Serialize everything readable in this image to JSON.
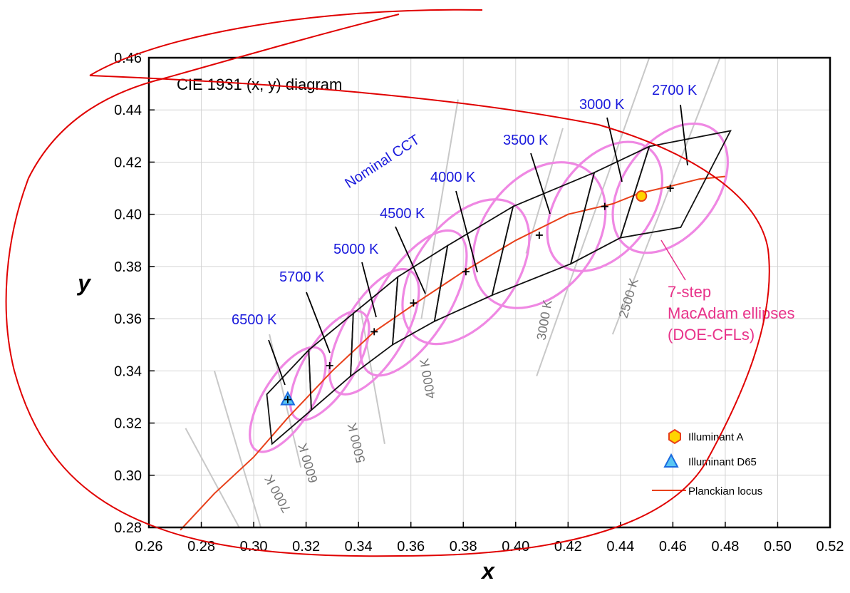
{
  "chart_data": {
    "type": "scatter",
    "title": "CIE 1931 (x, y) diagram",
    "xlabel": "x",
    "ylabel": "y",
    "xlim": [
      0.26,
      0.52
    ],
    "ylim": [
      0.28,
      0.46
    ],
    "xticks": [
      "0.26",
      "0.28",
      "0.30",
      "0.32",
      "0.34",
      "0.36",
      "0.38",
      "0.40",
      "0.42",
      "0.44",
      "0.46",
      "0.48",
      "0.50",
      "0.52"
    ],
    "yticks": [
      "0.28",
      "0.30",
      "0.32",
      "0.34",
      "0.36",
      "0.38",
      "0.40",
      "0.42",
      "0.44",
      "0.46"
    ],
    "grid": true,
    "planckian_locus": [
      [
        0.272,
        0.279
      ],
      [
        0.285,
        0.293
      ],
      [
        0.3,
        0.307
      ],
      [
        0.313,
        0.322
      ],
      [
        0.33,
        0.34
      ],
      [
        0.346,
        0.355
      ],
      [
        0.362,
        0.366
      ],
      [
        0.38,
        0.378
      ],
      [
        0.4,
        0.39
      ],
      [
        0.42,
        0.4
      ],
      [
        0.437,
        0.404
      ],
      [
        0.447,
        0.408
      ],
      [
        0.46,
        0.411
      ],
      [
        0.47,
        0.4135
      ],
      [
        0.48,
        0.4145
      ]
    ],
    "cct_regions": [
      {
        "label": "6500 K",
        "center": [
          0.313,
          0.329
        ],
        "quad": [
          [
            0.305,
            0.331
          ],
          [
            0.321,
            0.348
          ],
          [
            0.322,
            0.325
          ],
          [
            0.307,
            0.312
          ]
        ],
        "ellipse": {
          "cx": 0.313,
          "cy": 0.329,
          "rx": 0.0228,
          "ry": 0.0045,
          "angle": 58
        }
      },
      {
        "label": "5700 K",
        "center": [
          0.329,
          0.342
        ],
        "quad": [
          [
            0.321,
            0.348
          ],
          [
            0.338,
            0.362
          ],
          [
            0.337,
            0.338
          ],
          [
            0.322,
            0.325
          ]
        ],
        "ellipse": {
          "cx": 0.329,
          "cy": 0.342,
          "rx": 0.0238,
          "ry": 0.0046,
          "angle": 58
        }
      },
      {
        "label": "5000 K",
        "center": [
          0.346,
          0.355
        ],
        "quad": [
          [
            0.338,
            0.362
          ],
          [
            0.355,
            0.376
          ],
          [
            0.353,
            0.35
          ],
          [
            0.337,
            0.338
          ]
        ],
        "ellipse": {
          "cx": 0.346,
          "cy": 0.355,
          "rx": 0.027,
          "ry": 0.0055,
          "angle": 59
        }
      },
      {
        "label": "4500 K",
        "center": [
          0.361,
          0.366
        ],
        "quad": [
          [
            0.355,
            0.376
          ],
          [
            0.374,
            0.388
          ],
          [
            0.369,
            0.359
          ],
          [
            0.353,
            0.35
          ]
        ],
        "ellipse": {
          "cx": 0.361,
          "cy": 0.366,
          "rx": 0.0315,
          "ry": 0.0065,
          "angle": 58
        }
      },
      {
        "label": "4000 K",
        "center": [
          0.381,
          0.378
        ],
        "quad": [
          [
            0.374,
            0.388
          ],
          [
            0.399,
            0.403
          ],
          [
            0.391,
            0.369
          ],
          [
            0.369,
            0.359
          ]
        ],
        "ellipse": {
          "cx": 0.381,
          "cy": 0.378,
          "rx": 0.0315,
          "ry": 0.009,
          "angle": 53
        }
      },
      {
        "label": "3500 K",
        "center": [
          0.409,
          0.392
        ],
        "quad": [
          [
            0.399,
            0.403
          ],
          [
            0.43,
            0.416
          ],
          [
            0.421,
            0.381
          ],
          [
            0.391,
            0.369
          ]
        ],
        "ellipse": {
          "cx": 0.409,
          "cy": 0.392,
          "rx": 0.0308,
          "ry": 0.0103,
          "angle": 53
        }
      },
      {
        "label": "3000 K",
        "center": [
          0.434,
          0.403
        ],
        "quad": [
          [
            0.43,
            0.416
          ],
          [
            0.451,
            0.426
          ],
          [
            0.44,
            0.391
          ],
          [
            0.421,
            0.381
          ]
        ],
        "ellipse": {
          "cx": 0.434,
          "cy": 0.403,
          "rx": 0.0278,
          "ry": 0.0085,
          "angle": 53
        }
      },
      {
        "label": "2700 K",
        "center": [
          0.459,
          0.41
        ],
        "quad": [
          [
            0.451,
            0.426
          ],
          [
            0.482,
            0.432
          ],
          [
            0.463,
            0.395
          ],
          [
            0.44,
            0.391
          ]
        ],
        "ellipse": {
          "cx": 0.459,
          "cy": 0.41,
          "rx": 0.0278,
          "ry": 0.0085,
          "angle": 53
        }
      }
    ],
    "isotherms": [
      {
        "label": "7000 K",
        "p1": [
          0.274,
          0.318
        ],
        "p2": [
          0.295,
          0.279
        ]
      },
      {
        "label": "6000 K",
        "p1": [
          0.285,
          0.34
        ],
        "p2": [
          0.303,
          0.279
        ]
      },
      {
        "label": "5000 K",
        "p1": [
          0.306,
          0.354
        ],
        "p2": [
          0.318,
          0.303
        ]
      },
      {
        "label": "4000 K",
        "p1": [
          0.34,
          0.368
        ],
        "p2": [
          0.35,
          0.312
        ]
      },
      {
        "label": "3000 K",
        "p1": [
          0.378,
          0.444
        ],
        "p2": [
          0.364,
          0.36
        ]
      },
      {
        "label": "2500 K",
        "p1": [
          0.418,
          0.433
        ],
        "p2": [
          0.404,
          0.385
        ]
      },
      {
        "label": "",
        "p1": [
          0.451,
          0.46
        ],
        "p2": [
          0.408,
          0.338
        ]
      },
      {
        "label": "",
        "p1": [
          0.478,
          0.46
        ],
        "p2": [
          0.437,
          0.354
        ]
      }
    ],
    "illuminant_a": [
      0.448,
      0.407
    ],
    "illuminant_d65": [
      0.313,
      0.329
    ],
    "annotations": {
      "nominal_cct": "Nominal CCT",
      "macadam": [
        "7-step",
        "MacAdam ellipses",
        "(DOE-CFLs)"
      ]
    },
    "legend": [
      {
        "label": "Illuminant A",
        "marker": "hexagon-yellow"
      },
      {
        "label": "Illuminant D65",
        "marker": "triangle-blue"
      },
      {
        "label": "Planckian locus",
        "marker": "line-red"
      }
    ],
    "legend_position": "bottom-right"
  },
  "colors": {
    "locus": "#e8401a",
    "ellipse": "#ef88e3",
    "cct_text": "#1a1adc",
    "macadam_text": "#e8338a",
    "isotherm": "#c8c8c8",
    "grid": "#d4d4d4",
    "hand_drawn": "#e00000",
    "illuminant_a_fill": "#ffd400",
    "illuminant_d65_fill": "#59c6f2"
  }
}
